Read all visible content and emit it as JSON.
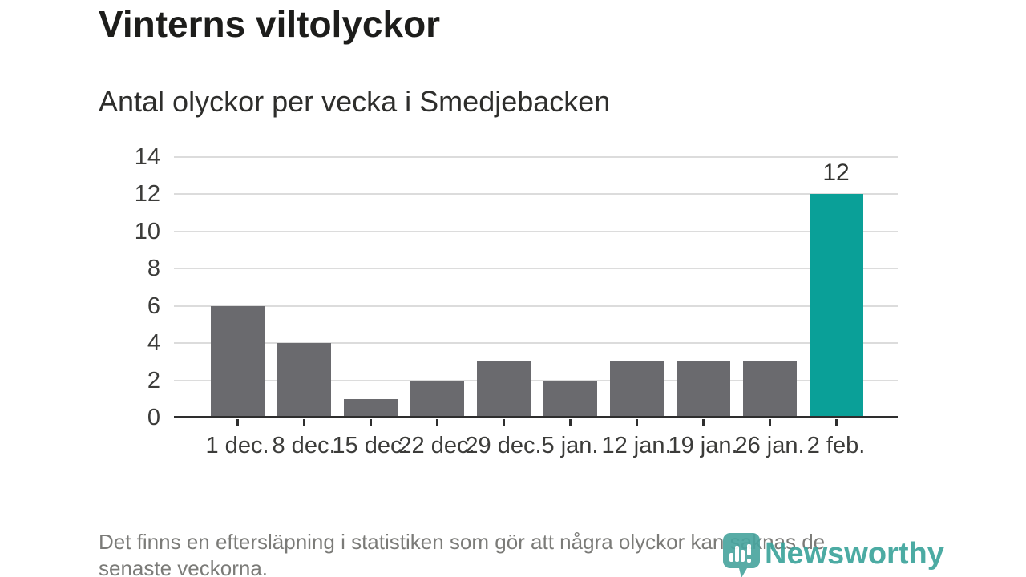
{
  "header": {
    "title": "Vinterns viltolyckor",
    "subtitle": "Antal olyckor per vecka i Smedjebacken"
  },
  "chart_data": {
    "type": "bar",
    "title": "Vinterns viltolyckor",
    "subtitle": "Antal olyckor per vecka i Smedjebacken",
    "categories": [
      "1 dec.",
      "8 dec.",
      "15 dec.",
      "22 dec.",
      "29 dec.",
      "5 jan.",
      "12 jan.",
      "19 jan.",
      "26 jan.",
      "2 feb."
    ],
    "values": [
      6,
      4,
      1,
      2,
      3,
      2,
      3,
      3,
      3,
      12
    ],
    "highlight": {
      "index": 9,
      "label": "12"
    },
    "xlabel": "",
    "ylabel": "",
    "ylim": [
      0,
      14
    ],
    "yticks": [
      0,
      2,
      4,
      6,
      8,
      10,
      12,
      14
    ],
    "grid": true,
    "legend": "none",
    "colors": {
      "bar": "#6a6a6e",
      "highlight": "#0aa098",
      "axis": "#2e2e2e",
      "gridline": "#dcdcdc",
      "tick_label": "#3c3c3a"
    }
  },
  "footer": {
    "note": "Det finns en eftersläpning i statistiken som gör att några olyckor kan saknas de senaste veckorna.",
    "brand": {
      "name": "Newsworthy",
      "color": "#3da49c",
      "icon": "newsworthy-bubble-barchart-icon"
    }
  }
}
